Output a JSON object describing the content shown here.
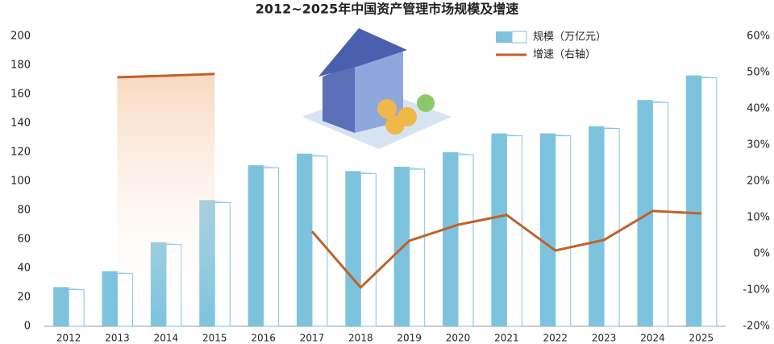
{
  "chart_data": {
    "type": "bar-line",
    "title": "2012~2025年中国资产管理市场规模及增速",
    "categories": [
      "2012",
      "2013",
      "2014",
      "2015",
      "2016",
      "2017",
      "2018",
      "2019",
      "2020",
      "2021",
      "2022",
      "2023",
      "2024",
      "2025"
    ],
    "series": [
      {
        "name": "规模（万亿元）",
        "type": "bar",
        "color": "#7ec3de",
        "values": [
          27,
          38,
          58,
          87,
          111,
          119,
          107,
          110,
          120,
          133,
          133,
          138,
          156,
          173
        ]
      },
      {
        "name": "增速（右轴）",
        "type": "line",
        "axis": "y2",
        "color": "#c0622a",
        "values": [
          null,
          48.7,
          49.1,
          49.6,
          null,
          6.2,
          -9.3,
          3.6,
          8,
          10.7,
          0.9,
          3.8,
          11.8,
          11.1
        ]
      }
    ],
    "ylim": [
      0,
      200
    ],
    "yticks": [
      0,
      20,
      40,
      60,
      80,
      100,
      120,
      140,
      160,
      180,
      200
    ],
    "y2lim": [
      -20,
      60
    ],
    "y2ticks": [
      {
        "value": -20,
        "label": "-20%"
      },
      {
        "value": -10,
        "label": "-10%"
      },
      {
        "value": 0,
        "label": "0%"
      },
      {
        "value": 10,
        "label": "10%"
      },
      {
        "value": 20,
        "label": "20%"
      },
      {
        "value": 30,
        "label": "30%"
      },
      {
        "value": 40,
        "label": "40%"
      },
      {
        "value": 50,
        "label": "50%"
      },
      {
        "value": 60,
        "label": "60%"
      }
    ],
    "legend": "top-right"
  }
}
